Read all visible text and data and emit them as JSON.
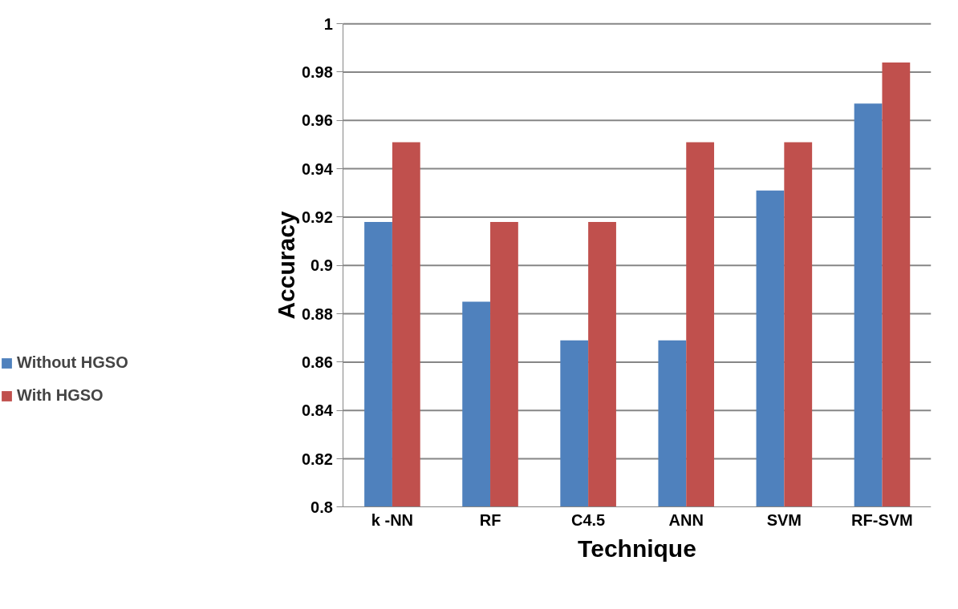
{
  "chart_data": {
    "type": "bar",
    "xlabel": "Technique",
    "ylabel": "Accuracy",
    "categories": [
      "k -NN",
      "RF",
      "C4.5",
      "ANN",
      "SVM",
      "RF-SVM"
    ],
    "series": [
      {
        "name": "Without HGSO",
        "color": "#4f81bd",
        "values": [
          0.918,
          0.885,
          0.869,
          0.869,
          0.931,
          0.967
        ]
      },
      {
        "name": "With HGSO",
        "color": "#c0504d",
        "values": [
          0.951,
          0.918,
          0.918,
          0.951,
          0.951,
          0.984
        ]
      }
    ],
    "ylim": [
      0.8,
      1
    ],
    "yticks": [
      0.8,
      0.82,
      0.84,
      0.86,
      0.88,
      0.9,
      0.92,
      0.94,
      0.96,
      0.98,
      1
    ],
    "grid": "y",
    "legend": "left"
  }
}
